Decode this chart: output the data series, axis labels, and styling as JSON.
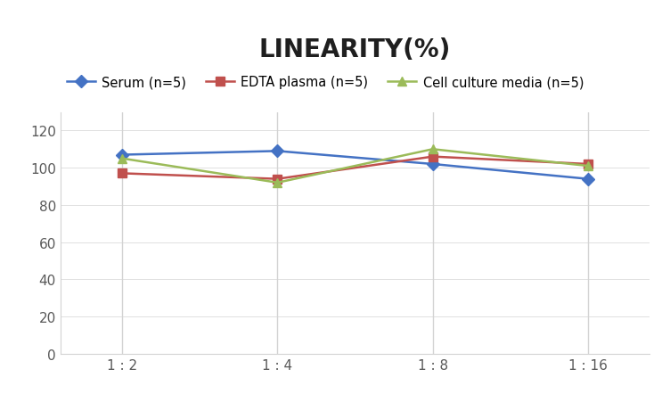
{
  "title": "LINEARITY(%)",
  "x_labels": [
    "1 : 2",
    "1 : 4",
    "1 : 8",
    "1 : 16"
  ],
  "x_ticks": [
    0,
    1,
    2,
    3
  ],
  "series": [
    {
      "label": "Serum (n=5)",
      "color": "#4472C4",
      "marker": "D",
      "values": [
        107,
        109,
        102,
        94
      ]
    },
    {
      "label": "EDTA plasma (n=5)",
      "color": "#C0504D",
      "marker": "s",
      "values": [
        97,
        94,
        106,
        102
      ]
    },
    {
      "label": "Cell culture media (n=5)",
      "color": "#9BBB59",
      "marker": "^",
      "values": [
        105,
        92,
        110,
        101
      ]
    }
  ],
  "ylim": [
    0,
    130
  ],
  "yticks": [
    0,
    20,
    40,
    60,
    80,
    100,
    120
  ],
  "grid_color": "#D3D3D3",
  "background_color": "#FFFFFF",
  "title_fontsize": 20,
  "legend_fontsize": 10.5,
  "tick_fontsize": 11
}
